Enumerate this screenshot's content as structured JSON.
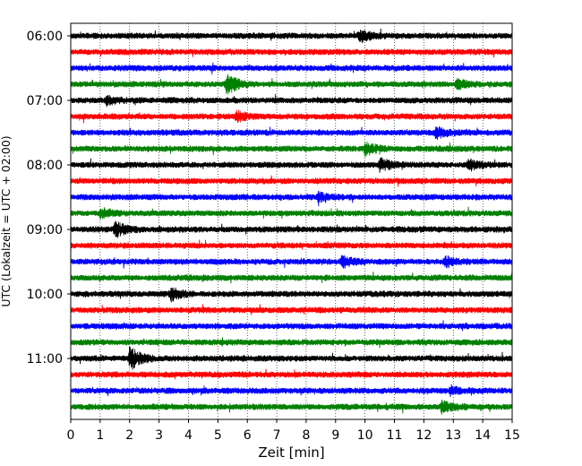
{
  "chart_data": {
    "type": "line",
    "chart_kind": "helicorder seismogram",
    "title": "",
    "xlabel": "Zeit  [min]",
    "ylabel": "UTC (Lokalzeit = UTC + 02:00)",
    "xlim": [
      0,
      15
    ],
    "x_ticks": [
      "0",
      "1",
      "2",
      "3",
      "4",
      "5",
      "6",
      "7",
      "8",
      "9",
      "10",
      "11",
      "12",
      "13",
      "14",
      "15"
    ],
    "y_tick_labels": [
      "06:00",
      "07:00",
      "08:00",
      "09:00",
      "10:00",
      "11:00"
    ],
    "y_tick_rows": [
      0,
      4,
      8,
      12,
      16,
      20
    ],
    "row_interval_minutes": 15,
    "row_count": 24,
    "trace_colors": [
      "#000000",
      "#ff0000",
      "#0000ff",
      "#008000"
    ],
    "grid": "vertical dotted lines at each minute",
    "legend": "none",
    "events": [
      {
        "row": 0,
        "minute": 9.8,
        "amp": 0.45
      },
      {
        "row": 3,
        "minute": 5.3,
        "amp": 1.0
      },
      {
        "row": 3,
        "minute": 13.1,
        "amp": 0.45
      },
      {
        "row": 4,
        "minute": 1.2,
        "amp": 0.35
      },
      {
        "row": 5,
        "minute": 5.6,
        "amp": 0.45
      },
      {
        "row": 6,
        "minute": 12.4,
        "amp": 0.45
      },
      {
        "row": 7,
        "minute": 10.0,
        "amp": 0.55
      },
      {
        "row": 8,
        "minute": 10.5,
        "amp": 0.55
      },
      {
        "row": 8,
        "minute": 13.5,
        "amp": 0.45
      },
      {
        "row": 10,
        "minute": 8.4,
        "amp": 0.35
      },
      {
        "row": 11,
        "minute": 1.0,
        "amp": 0.4
      },
      {
        "row": 12,
        "minute": 1.5,
        "amp": 0.6
      },
      {
        "row": 14,
        "minute": 9.2,
        "amp": 0.45
      },
      {
        "row": 14,
        "minute": 12.7,
        "amp": 0.45
      },
      {
        "row": 16,
        "minute": 3.4,
        "amp": 0.5
      },
      {
        "row": 20,
        "minute": 2.0,
        "amp": 1.0
      },
      {
        "row": 22,
        "minute": 12.9,
        "amp": 0.35
      },
      {
        "row": 23,
        "minute": 12.6,
        "amp": 0.45
      }
    ]
  }
}
